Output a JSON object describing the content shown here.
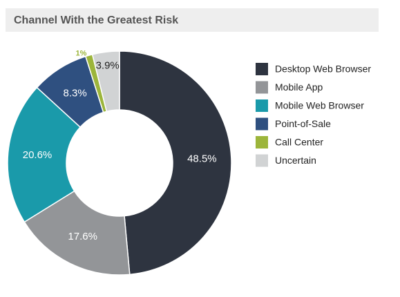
{
  "chart_data": {
    "type": "donut",
    "title": "Channel With the Greatest Risk",
    "categories": [
      "Desktop Web Browser",
      "Mobile App",
      "Mobile Web Browser",
      "Point-of-Sale",
      "Call Center",
      "Uncertain"
    ],
    "values": [
      48.5,
      17.6,
      20.6,
      8.3,
      1,
      3.9
    ],
    "value_labels": [
      "48.5%",
      "17.6%",
      "20.6%",
      "8.3%",
      "1%",
      "3.9%"
    ],
    "colors": [
      "#2e3440",
      "#939598",
      "#1a9aaa",
      "#2f5080",
      "#9cb53b",
      "#d1d3d4"
    ],
    "legend": "right"
  }
}
